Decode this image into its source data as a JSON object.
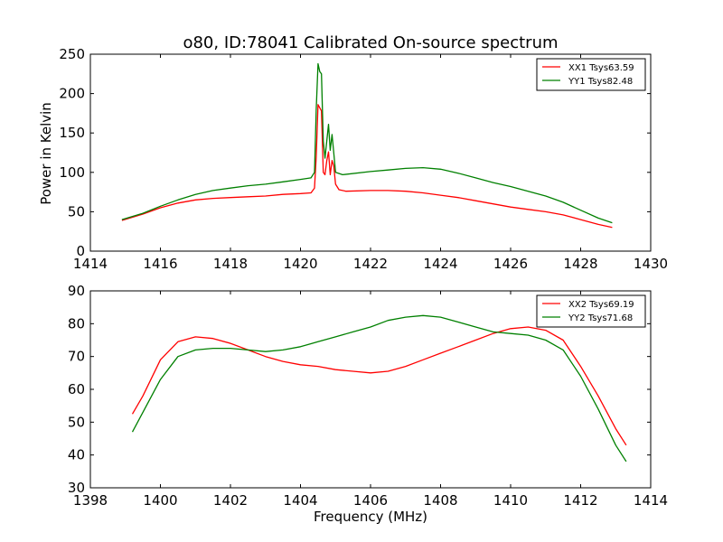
{
  "title": "o80, ID:78041 Calibrated On-source spectrum",
  "colors": {
    "red": "#ff0000",
    "green": "#008000"
  },
  "chart_data": [
    {
      "type": "line",
      "ylabel": "Power in Kelvin",
      "xlabel": "",
      "xlim": [
        1414,
        1430
      ],
      "ylim": [
        0,
        250
      ],
      "xticks": [
        1414,
        1416,
        1418,
        1420,
        1422,
        1424,
        1426,
        1428,
        1430
      ],
      "yticks": [
        0,
        50,
        100,
        150,
        200,
        250
      ],
      "legend_position": "top-right",
      "series": [
        {
          "name": "XX1 Tsys63.59",
          "color": "#ff0000",
          "points": [
            [
              1414.9,
              39
            ],
            [
              1415.5,
              47
            ],
            [
              1416,
              55
            ],
            [
              1416.5,
              61
            ],
            [
              1417,
              65
            ],
            [
              1417.5,
              67
            ],
            [
              1418,
              68
            ],
            [
              1418.5,
              69
            ],
            [
              1419,
              70
            ],
            [
              1419.5,
              72
            ],
            [
              1420,
              73
            ],
            [
              1420.3,
              74
            ],
            [
              1420.4,
              80
            ],
            [
              1420.45,
              120
            ],
            [
              1420.5,
              186
            ],
            [
              1420.55,
              182
            ],
            [
              1420.6,
              178
            ],
            [
              1420.65,
              100
            ],
            [
              1420.7,
              97
            ],
            [
              1420.75,
              115
            ],
            [
              1420.8,
              126
            ],
            [
              1420.85,
              97
            ],
            [
              1420.9,
              115
            ],
            [
              1420.95,
              108
            ],
            [
              1421,
              85
            ],
            [
              1421.1,
              78
            ],
            [
              1421.3,
              76
            ],
            [
              1422,
              77
            ],
            [
              1422.5,
              77
            ],
            [
              1423,
              76
            ],
            [
              1423.5,
              74
            ],
            [
              1424,
              71
            ],
            [
              1424.5,
              68
            ],
            [
              1425,
              64
            ],
            [
              1425.5,
              60
            ],
            [
              1426,
              56
            ],
            [
              1426.5,
              53
            ],
            [
              1427,
              50
            ],
            [
              1427.5,
              46
            ],
            [
              1428,
              40
            ],
            [
              1428.5,
              34
            ],
            [
              1428.9,
              30
            ]
          ]
        },
        {
          "name": "YY1 Tsys82.48",
          "color": "#008000",
          "points": [
            [
              1414.9,
              40
            ],
            [
              1415.5,
              48
            ],
            [
              1416,
              57
            ],
            [
              1416.5,
              65
            ],
            [
              1417,
              72
            ],
            [
              1417.5,
              77
            ],
            [
              1418,
              80
            ],
            [
              1418.5,
              83
            ],
            [
              1419,
              85
            ],
            [
              1419.5,
              88
            ],
            [
              1420,
              91
            ],
            [
              1420.3,
              93
            ],
            [
              1420.4,
              100
            ],
            [
              1420.45,
              180
            ],
            [
              1420.5,
              238
            ],
            [
              1420.55,
              228
            ],
            [
              1420.6,
              225
            ],
            [
              1420.65,
              140
            ],
            [
              1420.7,
              118
            ],
            [
              1420.75,
              140
            ],
            [
              1420.8,
              161
            ],
            [
              1420.85,
              128
            ],
            [
              1420.9,
              148
            ],
            [
              1420.95,
              125
            ],
            [
              1421,
              100
            ],
            [
              1421.2,
              97
            ],
            [
              1422,
              101
            ],
            [
              1422.5,
              103
            ],
            [
              1423,
              105
            ],
            [
              1423.5,
              106
            ],
            [
              1424,
              104
            ],
            [
              1424.5,
              99
            ],
            [
              1425,
              93
            ],
            [
              1425.5,
              87
            ],
            [
              1426,
              82
            ],
            [
              1426.5,
              76
            ],
            [
              1427,
              70
            ],
            [
              1427.5,
              62
            ],
            [
              1428,
              52
            ],
            [
              1428.5,
              42
            ],
            [
              1428.9,
              36
            ]
          ]
        }
      ]
    },
    {
      "type": "line",
      "ylabel": "",
      "xlabel": "Frequency (MHz)",
      "xlim": [
        1398,
        1414
      ],
      "ylim": [
        30,
        90
      ],
      "xticks": [
        1398,
        1400,
        1402,
        1404,
        1406,
        1408,
        1410,
        1412,
        1414
      ],
      "yticks": [
        30,
        40,
        50,
        60,
        70,
        80,
        90
      ],
      "legend_position": "top-right",
      "series": [
        {
          "name": "XX2 Tsys69.19",
          "color": "#ff0000",
          "points": [
            [
              1399.2,
              52.5
            ],
            [
              1399.5,
              58
            ],
            [
              1400,
              69
            ],
            [
              1400.5,
              74.5
            ],
            [
              1401,
              76
            ],
            [
              1401.5,
              75.5
            ],
            [
              1402,
              74
            ],
            [
              1402.5,
              72
            ],
            [
              1403,
              70
            ],
            [
              1403.5,
              68.5
            ],
            [
              1404,
              67.5
            ],
            [
              1404.5,
              67
            ],
            [
              1405,
              66
            ],
            [
              1405.5,
              65.5
            ],
            [
              1406,
              65
            ],
            [
              1406.5,
              65.5
            ],
            [
              1407,
              67
            ],
            [
              1407.5,
              69
            ],
            [
              1408,
              71
            ],
            [
              1408.5,
              73
            ],
            [
              1409,
              75
            ],
            [
              1409.5,
              77
            ],
            [
              1410,
              78.5
            ],
            [
              1410.5,
              79
            ],
            [
              1411,
              78
            ],
            [
              1411.5,
              75
            ],
            [
              1412,
              67
            ],
            [
              1412.5,
              58
            ],
            [
              1413,
              48
            ],
            [
              1413.3,
              43
            ]
          ]
        },
        {
          "name": "YY2 Tsys71.68",
          "color": "#008000",
          "points": [
            [
              1399.2,
              47
            ],
            [
              1399.5,
              53
            ],
            [
              1400,
              63
            ],
            [
              1400.5,
              70
            ],
            [
              1401,
              72
            ],
            [
              1401.5,
              72.5
            ],
            [
              1402,
              72.5
            ],
            [
              1402.5,
              72
            ],
            [
              1403,
              71.5
            ],
            [
              1403.5,
              72
            ],
            [
              1404,
              73
            ],
            [
              1404.5,
              74.5
            ],
            [
              1405,
              76
            ],
            [
              1405.5,
              77.5
            ],
            [
              1406,
              79
            ],
            [
              1406.5,
              81
            ],
            [
              1407,
              82
            ],
            [
              1407.5,
              82.5
            ],
            [
              1408,
              82
            ],
            [
              1408.5,
              80.5
            ],
            [
              1409,
              79
            ],
            [
              1409.5,
              77.5
            ],
            [
              1410,
              77
            ],
            [
              1410.5,
              76.5
            ],
            [
              1411,
              75
            ],
            [
              1411.5,
              72
            ],
            [
              1412,
              64
            ],
            [
              1412.5,
              54
            ],
            [
              1413,
              43
            ],
            [
              1413.3,
              38
            ]
          ]
        }
      ]
    }
  ]
}
